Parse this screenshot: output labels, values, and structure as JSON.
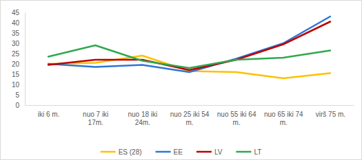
{
  "chart_data": {
    "type": "line",
    "categories": [
      "iki 6 m.",
      "nuo 7 iki 17m.",
      "nuo 18 iki 24m.",
      "nuo 25 iki 54 m.",
      "nuo 55 iki 64 m.",
      "nuo 65 iki 74 m.",
      "virš 75 m."
    ],
    "series": [
      {
        "name": "ES (28)",
        "color": "#ffc000",
        "values": [
          20,
          20.5,
          24,
          16.5,
          16,
          13,
          15.5
        ]
      },
      {
        "name": "EE",
        "color": "#2e75d6",
        "values": [
          20,
          18.5,
          19.5,
          16,
          22.5,
          30,
          43
        ]
      },
      {
        "name": "LV",
        "color": "#c00000",
        "values": [
          19.5,
          22,
          22,
          17,
          22,
          29.5,
          40.5
        ]
      },
      {
        "name": "LT",
        "color": "#2fa84f",
        "values": [
          23.5,
          29,
          21.5,
          18,
          22,
          23,
          26.5
        ]
      }
    ],
    "ylim": [
      0,
      45
    ],
    "yticks": [
      0,
      5,
      10,
      15,
      20,
      25,
      30,
      35,
      40,
      45
    ],
    "grid": false,
    "legend": "bottom"
  }
}
